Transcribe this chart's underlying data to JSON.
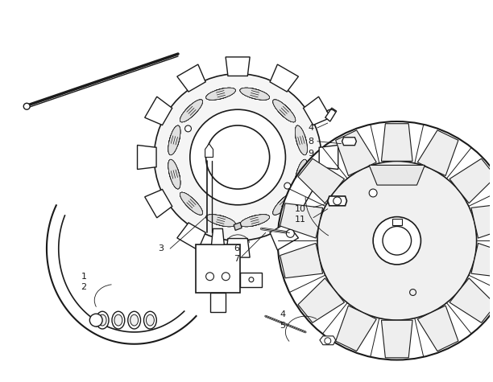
{
  "bg_color": "#ffffff",
  "line_color": "#1a1a1a",
  "fig_width": 6.12,
  "fig_height": 4.75,
  "dpi": 100
}
